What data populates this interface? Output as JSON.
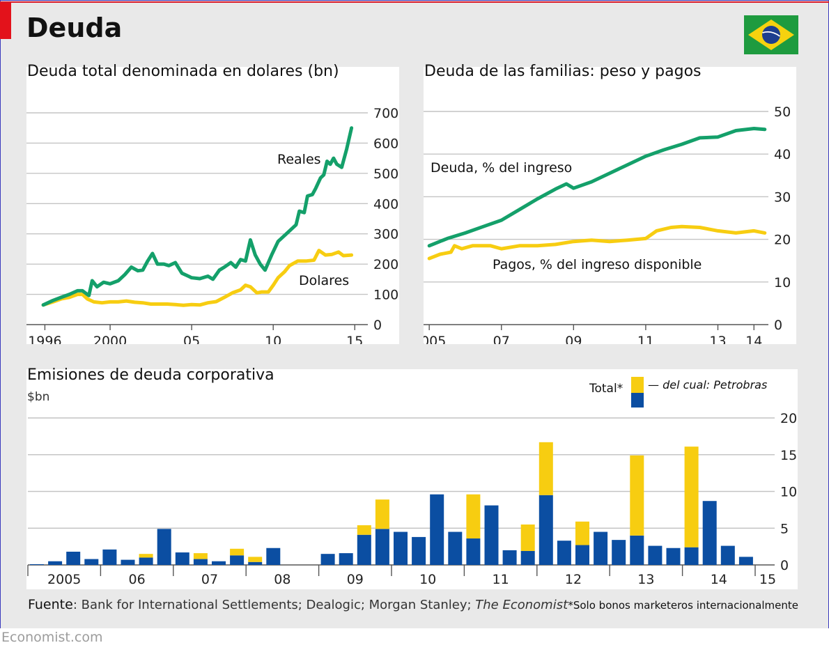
{
  "header": {
    "title": "Deuda",
    "flag_icon": "brazil-flag-icon",
    "accent_color": "#e3121b"
  },
  "colors": {
    "green": "#14a06a",
    "yellow": "#f7cd11",
    "blue": "#0b4ea2",
    "grid": "#c4c4c4",
    "panel": "#ffffff",
    "background": "#e9e9e9"
  },
  "footer": {
    "source_label": "Fuente",
    "source_text": ": Bank for International Settlements; Dealogic; Morgan Stanley; ",
    "source_publication": "The Economist",
    "note": "*Solo bonos marketeros internacionalmente",
    "brand": "Economist.com"
  },
  "chart_data": [
    {
      "type": "line",
      "title": "Deuda total denominada en dolares (bn)",
      "x_ticks": [
        1996,
        2000,
        2005,
        2010,
        2015
      ],
      "x_tick_labels": [
        "1996",
        "2000",
        "05",
        "10",
        "15"
      ],
      "xlim": [
        1995.0,
        2015.8
      ],
      "ylim": [
        0,
        700
      ],
      "y_ticks": [
        0,
        100,
        200,
        300,
        400,
        500,
        600,
        700
      ],
      "grid": true,
      "series": [
        {
          "name": "Reales",
          "color": "#14a06a",
          "points": [
            [
              1995.9,
              65
            ],
            [
              1996.5,
              80
            ],
            [
              1997.0,
              90
            ],
            [
              1997.5,
              100
            ],
            [
              1998.0,
              112
            ],
            [
              1998.3,
              112
            ],
            [
              1998.7,
              96
            ],
            [
              1998.9,
              145
            ],
            [
              1999.2,
              125
            ],
            [
              1999.6,
              140
            ],
            [
              2000.0,
              135
            ],
            [
              2000.5,
              145
            ],
            [
              2000.9,
              165
            ],
            [
              2001.3,
              190
            ],
            [
              2001.7,
              178
            ],
            [
              2002.0,
              180
            ],
            [
              2002.3,
              210
            ],
            [
              2002.6,
              235
            ],
            [
              2002.9,
              200
            ],
            [
              2003.3,
              200
            ],
            [
              2003.6,
              195
            ],
            [
              2004.0,
              205
            ],
            [
              2004.4,
              170
            ],
            [
              2004.8,
              160
            ],
            [
              2005.0,
              155
            ],
            [
              2005.5,
              152
            ],
            [
              2006.0,
              160
            ],
            [
              2006.3,
              150
            ],
            [
              2006.7,
              180
            ],
            [
              2007.0,
              190
            ],
            [
              2007.4,
              205
            ],
            [
              2007.7,
              190
            ],
            [
              2008.0,
              215
            ],
            [
              2008.3,
              210
            ],
            [
              2008.6,
              280
            ],
            [
              2008.9,
              230
            ],
            [
              2009.2,
              200
            ],
            [
              2009.5,
              180
            ],
            [
              2009.9,
              230
            ],
            [
              2010.3,
              275
            ],
            [
              2010.7,
              295
            ],
            [
              2011.0,
              310
            ],
            [
              2011.4,
              330
            ],
            [
              2011.6,
              375
            ],
            [
              2011.9,
              370
            ],
            [
              2012.1,
              425
            ],
            [
              2012.4,
              430
            ],
            [
              2012.6,
              450
            ],
            [
              2012.9,
              485
            ],
            [
              2013.1,
              495
            ],
            [
              2013.3,
              540
            ],
            [
              2013.5,
              530
            ],
            [
              2013.7,
              550
            ],
            [
              2013.9,
              530
            ],
            [
              2014.2,
              520
            ],
            [
              2014.5,
              580
            ],
            [
              2014.8,
              650
            ]
          ]
        },
        {
          "name": "Dolares",
          "color": "#f7cd11",
          "points": [
            [
              1995.9,
              65
            ],
            [
              1996.5,
              75
            ],
            [
              1997.0,
              85
            ],
            [
              1997.5,
              90
            ],
            [
              1998.0,
              100
            ],
            [
              1998.3,
              100
            ],
            [
              1998.6,
              85
            ],
            [
              1999.0,
              75
            ],
            [
              1999.5,
              72
            ],
            [
              2000.0,
              75
            ],
            [
              2000.5,
              75
            ],
            [
              2001.0,
              78
            ],
            [
              2001.5,
              74
            ],
            [
              2002.0,
              72
            ],
            [
              2002.5,
              68
            ],
            [
              2003.0,
              68
            ],
            [
              2003.5,
              68
            ],
            [
              2004.0,
              66
            ],
            [
              2004.5,
              64
            ],
            [
              2005.0,
              66
            ],
            [
              2005.5,
              65
            ],
            [
              2006.0,
              72
            ],
            [
              2006.5,
              76
            ],
            [
              2007.0,
              90
            ],
            [
              2007.5,
              105
            ],
            [
              2008.0,
              115
            ],
            [
              2008.3,
              130
            ],
            [
              2008.6,
              125
            ],
            [
              2009.0,
              105
            ],
            [
              2009.3,
              108
            ],
            [
              2009.7,
              108
            ],
            [
              2010.0,
              130
            ],
            [
              2010.3,
              155
            ],
            [
              2010.7,
              175
            ],
            [
              2011.0,
              195
            ],
            [
              2011.5,
              210
            ],
            [
              2012.0,
              210
            ],
            [
              2012.5,
              213
            ],
            [
              2012.8,
              245
            ],
            [
              2013.2,
              230
            ],
            [
              2013.6,
              232
            ],
            [
              2014.0,
              240
            ],
            [
              2014.3,
              228
            ],
            [
              2014.8,
              230
            ]
          ]
        }
      ]
    },
    {
      "type": "line",
      "title": "Deuda de las familias: peso y pagos",
      "x_ticks": [
        2005,
        2007,
        2009,
        2011,
        2013,
        2014
      ],
      "x_tick_labels": [
        "2005",
        "07",
        "09",
        "11",
        "13",
        "14"
      ],
      "xlim": [
        2004.9,
        2014.4
      ],
      "ylim": [
        0,
        50
      ],
      "y_ticks": [
        0,
        10,
        20,
        30,
        40,
        50
      ],
      "grid": true,
      "series": [
        {
          "name": "Deuda, % del ingreso",
          "color": "#14a06a",
          "points": [
            [
              2005.0,
              18.5
            ],
            [
              2005.5,
              20.2
            ],
            [
              2006.0,
              21.5
            ],
            [
              2006.5,
              23.0
            ],
            [
              2007.0,
              24.5
            ],
            [
              2007.5,
              27.0
            ],
            [
              2008.0,
              29.5
            ],
            [
              2008.5,
              31.8
            ],
            [
              2008.8,
              33.0
            ],
            [
              2009.0,
              32.0
            ],
            [
              2009.5,
              33.5
            ],
            [
              2010.0,
              35.5
            ],
            [
              2010.5,
              37.5
            ],
            [
              2011.0,
              39.5
            ],
            [
              2011.5,
              41.0
            ],
            [
              2012.0,
              42.3
            ],
            [
              2012.5,
              43.8
            ],
            [
              2013.0,
              44.0
            ],
            [
              2013.5,
              45.5
            ],
            [
              2014.0,
              46.0
            ],
            [
              2014.3,
              45.8
            ]
          ]
        },
        {
          "name": "Pagos, % del ingreso disponible",
          "color": "#f7cd11",
          "points": [
            [
              2005.0,
              15.5
            ],
            [
              2005.3,
              16.5
            ],
            [
              2005.6,
              17.0
            ],
            [
              2005.7,
              18.5
            ],
            [
              2005.9,
              17.8
            ],
            [
              2006.2,
              18.5
            ],
            [
              2006.7,
              18.5
            ],
            [
              2007.0,
              17.8
            ],
            [
              2007.5,
              18.5
            ],
            [
              2008.0,
              18.5
            ],
            [
              2008.5,
              18.8
            ],
            [
              2009.0,
              19.5
            ],
            [
              2009.5,
              19.8
            ],
            [
              2010.0,
              19.5
            ],
            [
              2010.5,
              19.8
            ],
            [
              2011.0,
              20.2
            ],
            [
              2011.3,
              22.0
            ],
            [
              2011.7,
              22.8
            ],
            [
              2012.0,
              23.0
            ],
            [
              2012.5,
              22.8
            ],
            [
              2013.0,
              22.0
            ],
            [
              2013.5,
              21.5
            ],
            [
              2014.0,
              22.0
            ],
            [
              2014.3,
              21.5
            ]
          ]
        }
      ]
    },
    {
      "type": "bar",
      "title": "Emisiones de deuda corporativa",
      "unit": "$bn",
      "stacked": true,
      "ylim": [
        0,
        20
      ],
      "y_ticks": [
        0,
        5,
        10,
        15,
        20
      ],
      "grid": true,
      "x_labels": [
        "2005",
        "06",
        "07",
        "08",
        "09",
        "10",
        "11",
        "12",
        "13",
        "14",
        "15"
      ],
      "legend": {
        "total_label": "Total*",
        "petrobras_label": "— del cual: Petrobras",
        "placement": "top-right"
      },
      "categories": [
        "2005 Q1",
        "2005 Q2",
        "2005 Q3",
        "2005 Q4",
        "2006 Q1",
        "2006 Q2",
        "2006 Q3",
        "2006 Q4",
        "2007 Q1",
        "2007 Q2",
        "2007 Q3",
        "2007 Q4",
        "2008 Q1",
        "2008 Q2",
        "2008 Q3",
        "2008 Q4",
        "2009 Q1",
        "2009 Q2",
        "2009 Q3",
        "2009 Q4",
        "2010 Q1",
        "2010 Q2",
        "2010 Q3",
        "2010 Q4",
        "2011 Q1",
        "2011 Q2",
        "2011 Q3",
        "2011 Q4",
        "2012 Q1",
        "2012 Q2",
        "2012 Q3",
        "2012 Q4",
        "2013 Q1",
        "2013 Q2",
        "2013 Q3",
        "2013 Q4",
        "2014 Q1",
        "2014 Q2",
        "2014 Q3",
        "2014 Q4"
      ],
      "series": [
        {
          "name": "Total*",
          "color": "#0b4ea2",
          "values": [
            0.1,
            0.5,
            1.8,
            0.8,
            2.1,
            0.7,
            1.0,
            4.9,
            1.7,
            0.8,
            0.5,
            1.3,
            0.4,
            2.3,
            0,
            0,
            1.5,
            1.6,
            4.1,
            4.9,
            4.5,
            3.8,
            9.6,
            4.5,
            3.6,
            8.1,
            2.0,
            1.9,
            9.5,
            3.3,
            2.7,
            4.5,
            3.4,
            4.0,
            2.6,
            2.3,
            2.4,
            8.7,
            2.6,
            1.1
          ]
        },
        {
          "name": "del cual: Petrobras",
          "color": "#f7cd11",
          "values": [
            0,
            0,
            0,
            0,
            0,
            0,
            0.5,
            0,
            0,
            0.8,
            0,
            0.9,
            0.7,
            0,
            0,
            0,
            0,
            0,
            1.3,
            4.0,
            0,
            0,
            0,
            0,
            6.0,
            0,
            0,
            3.6,
            7.2,
            0,
            3.2,
            0,
            0,
            10.9,
            0,
            0,
            13.7,
            0,
            0,
            0
          ]
        }
      ]
    }
  ]
}
